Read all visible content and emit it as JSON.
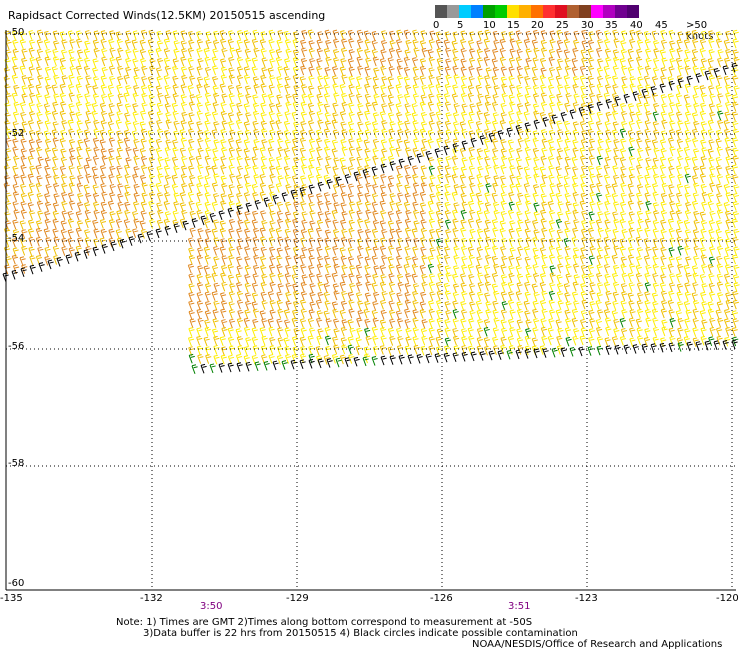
{
  "title": "Rapidsact Corrected Winds(12.5KM) 20150515 ascending",
  "colorbar": {
    "colors": [
      "#555555",
      "#999999",
      "#00ccff",
      "#0080ff",
      "#00a000",
      "#00cc00",
      "#ffe000",
      "#ffb000",
      "#ff7000",
      "#ff3030",
      "#e01020",
      "#b06030",
      "#804020",
      "#ff00ff",
      "#b000c0",
      "#700090",
      "#500070"
    ],
    "labels": [
      "0",
      "5",
      "10",
      "15",
      "20",
      "25",
      "30",
      "35",
      "40",
      "45",
      ">50 knots"
    ]
  },
  "lat_labels": [
    "-50",
    "-52",
    "-54",
    "-56",
    "-58",
    "-60"
  ],
  "lon_labels": [
    "-135",
    "-132",
    "-129",
    "-126",
    "-123",
    "-120"
  ],
  "time_labels": [
    "3:50",
    "3:51"
  ],
  "notes": {
    "line1": "Note: 1) Times are GMT 2)Times along bottom correspond to measurement at -50S",
    "line2": "3)Data buffer is 22 hrs from 20150515 4) Black circles indicate possible contamination",
    "credit": "NOAA/NESDIS/Office of Research and Applications"
  },
  "wind_colors": {
    "light": "#ffee00",
    "medium": "#f0c000",
    "strong": "#e08820",
    "rain_flag": "#000000",
    "green": "#008000"
  }
}
